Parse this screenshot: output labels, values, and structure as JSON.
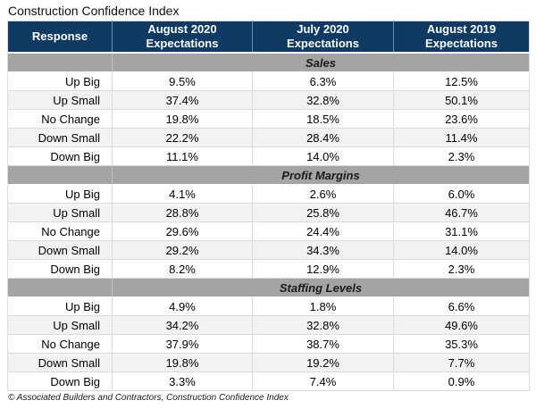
{
  "page": {
    "title": "Construction Confidence Index",
    "footer": "© Associated Builders and Contractors, Construction Confidence Index"
  },
  "colors": {
    "header_bg": "#0F3A64",
    "header_text": "#FFFFFF",
    "header_divider": "#6A8FB3",
    "section_bg": "#A4A4A4",
    "row_alt_bg": "#F2F2F2",
    "grid_line": "#DCDCDC"
  },
  "chart_data": {
    "type": "table",
    "title": "Construction Confidence Index",
    "columns": [
      "Response",
      "August 2020\nExpectations",
      "July 2020\nExpectations",
      "August 2019\nExpectations"
    ],
    "sections": [
      {
        "name": "Sales",
        "rows": [
          {
            "label": "Up Big",
            "values": [
              "9.5%",
              "6.3%",
              "12.5%"
            ]
          },
          {
            "label": "Up Small",
            "values": [
              "37.4%",
              "32.8%",
              "50.1%"
            ]
          },
          {
            "label": "No Change",
            "values": [
              "19.8%",
              "18.5%",
              "23.6%"
            ]
          },
          {
            "label": "Down Small",
            "values": [
              "22.2%",
              "28.4%",
              "11.4%"
            ]
          },
          {
            "label": "Down Big",
            "values": [
              "11.1%",
              "14.0%",
              "2.3%"
            ]
          }
        ]
      },
      {
        "name": "Profit Margins",
        "rows": [
          {
            "label": "Up Big",
            "values": [
              "4.1%",
              "2.6%",
              "6.0%"
            ]
          },
          {
            "label": "Up Small",
            "values": [
              "28.8%",
              "25.8%",
              "46.7%"
            ]
          },
          {
            "label": "No Change",
            "values": [
              "29.6%",
              "24.4%",
              "31.1%"
            ]
          },
          {
            "label": "Down Small",
            "values": [
              "29.2%",
              "34.3%",
              "14.0%"
            ]
          },
          {
            "label": "Down Big",
            "values": [
              "8.2%",
              "12.9%",
              "2.3%"
            ]
          }
        ]
      },
      {
        "name": "Staffing Levels",
        "rows": [
          {
            "label": "Up Big",
            "values": [
              "4.9%",
              "1.8%",
              "6.6%"
            ]
          },
          {
            "label": "Up Small",
            "values": [
              "34.2%",
              "32.8%",
              "49.6%"
            ]
          },
          {
            "label": "No Change",
            "values": [
              "37.9%",
              "38.7%",
              "35.3%"
            ]
          },
          {
            "label": "Down Small",
            "values": [
              "19.8%",
              "19.2%",
              "7.7%"
            ]
          },
          {
            "label": "Down Big",
            "values": [
              "3.3%",
              "7.4%",
              "0.9%"
            ]
          }
        ]
      }
    ],
    "source": "© Associated Builders and Contractors, Construction Confidence Index"
  }
}
